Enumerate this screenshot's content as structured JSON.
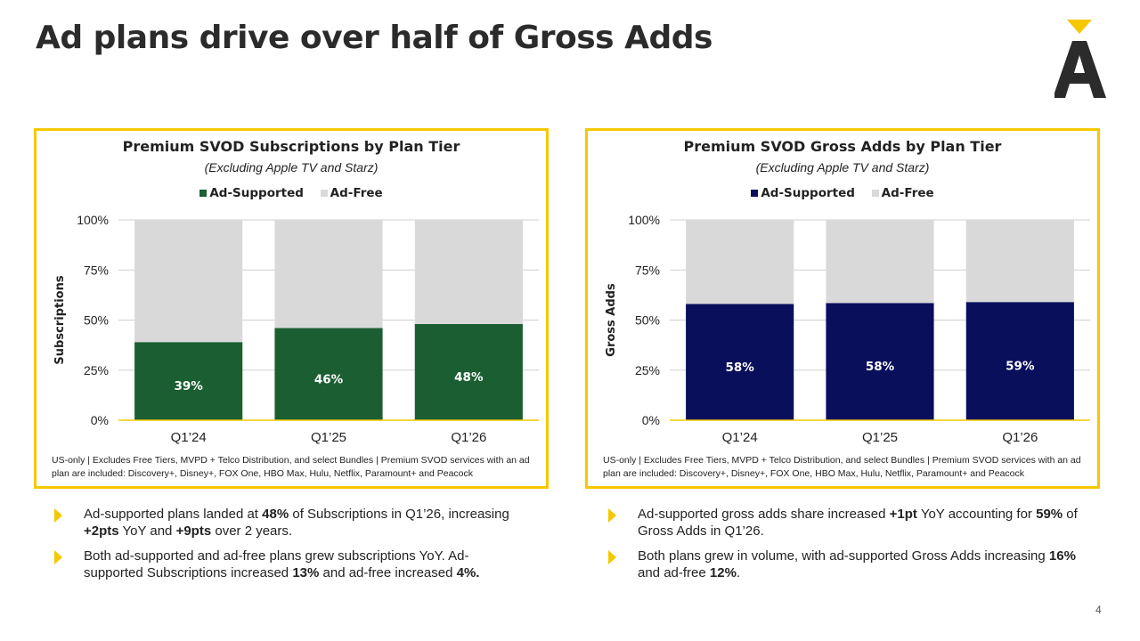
{
  "slide": {
    "title": "Ad plans drive over half of Gross Adds",
    "page_number": "4",
    "accent_color": "#f5c800"
  },
  "left_panel": {
    "title": "Premium SVOD Subscriptions by Plan Tier",
    "subtitle": "(Excluding Apple TV and Starz)",
    "legend": [
      "Ad-Supported",
      "Ad-Free"
    ],
    "footnote": "US-only | Excludes Free Tiers, MVPD + Telco Distribution, and select Bundles | Premium SVOD services with an ad plan are included: Discovery+, Disney+, FOX One, HBO Max, Hulu, Netflix, Paramount+ and Peacock",
    "bullets": [
      [
        {
          "t": "Ad-supported plans landed at ",
          "b": false
        },
        {
          "t": "48%",
          "b": true
        },
        {
          "t": " of Subscriptions in Q1’26, increasing ",
          "b": false
        },
        {
          "t": "+2pts",
          "b": true
        },
        {
          "t": " YoY and ",
          "b": false
        },
        {
          "t": "+9pts",
          "b": true
        },
        {
          "t": " over 2 years.",
          "b": false
        }
      ],
      [
        {
          "t": "Both ad-supported and ad-free plans grew subscriptions YoY. Ad-supported Subscriptions increased ",
          "b": false
        },
        {
          "t": "13%",
          "b": true
        },
        {
          "t": " and ad-free increased ",
          "b": false
        },
        {
          "t": "4%.",
          "b": true
        }
      ]
    ]
  },
  "right_panel": {
    "title": "Premium SVOD Gross Adds by Plan Tier",
    "subtitle": "(Excluding Apple TV and Starz)",
    "legend": [
      "Ad-Supported",
      "Ad-Free"
    ],
    "footnote": "US-only | Excludes Free Tiers, MVPD + Telco Distribution, and select Bundles | Premium SVOD services with an ad plan are included: Discovery+, Disney+, FOX One, HBO Max, Hulu, Netflix, Paramount+ and Peacock",
    "bullets": [
      [
        {
          "t": "Ad-supported gross adds share increased ",
          "b": false
        },
        {
          "t": "+1pt",
          "b": true
        },
        {
          "t": " YoY accounting for ",
          "b": false
        },
        {
          "t": "59%",
          "b": true
        },
        {
          "t": " of Gross Adds in Q1’26.",
          "b": false
        }
      ],
      [
        {
          "t": "Both plans grew in volume, with ad-supported Gross Adds increasing ",
          "b": false
        },
        {
          "t": "16%",
          "b": true
        },
        {
          "t": " and ad-free ",
          "b": false
        },
        {
          "t": "12%",
          "b": true
        },
        {
          "t": ".",
          "b": false
        }
      ]
    ]
  },
  "chart_data": [
    {
      "type": "bar",
      "stacked": true,
      "title": "Premium SVOD Subscriptions by Plan Tier",
      "subtitle": "(Excluding Apple TV and Starz)",
      "categories": [
        "Q1’24",
        "Q1’25",
        "Q1’26"
      ],
      "series": [
        {
          "name": "Ad-Supported",
          "values": [
            39,
            46,
            48
          ],
          "labels": [
            "39%",
            "46%",
            "48%"
          ],
          "color": "#1b5e32"
        },
        {
          "name": "Ad-Free",
          "values": [
            61,
            54,
            52
          ],
          "color": "#d9d9d9"
        }
      ],
      "ylabel": "Subscriptions",
      "ylim": [
        0,
        100
      ],
      "yticks": [
        "0%",
        "25%",
        "50%",
        "75%",
        "100%"
      ],
      "legend_position": "top",
      "grid": true
    },
    {
      "type": "bar",
      "stacked": true,
      "title": "Premium SVOD Gross Adds by Plan Tier",
      "subtitle": "(Excluding Apple TV and Starz)",
      "categories": [
        "Q1’24",
        "Q1’25",
        "Q1’26"
      ],
      "series": [
        {
          "name": "Ad-Supported",
          "values": [
            58,
            58.5,
            59
          ],
          "labels": [
            "58%",
            "58%",
            "59%"
          ],
          "color": "#0a0f5c"
        },
        {
          "name": "Ad-Free",
          "values": [
            42,
            41.5,
            41
          ],
          "color": "#d9d9d9"
        }
      ],
      "ylabel": "Gross Adds",
      "ylim": [
        0,
        100
      ],
      "yticks": [
        "0%",
        "25%",
        "50%",
        "75%",
        "100%"
      ],
      "legend_position": "top",
      "grid": true
    }
  ]
}
